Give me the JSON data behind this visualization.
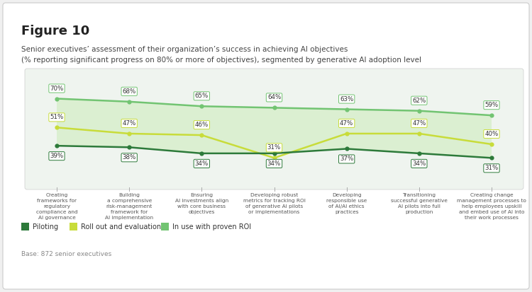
{
  "title": "Figure 10",
  "subtitle_line1": "Senior executives’ assessment of their organization’s success in achieving AI objectives",
  "subtitle_line2": "(% reporting significant progress on 80% or more of objectives), segmented by generative AI adoption level",
  "base_note": "Base: 872 senior executives",
  "categories": [
    "Creating\nframeworks for\nregulatory\ncompliance and\nAI governance",
    "Building\na comprehensive\nrisk-management\nframework for\nAI implementation",
    "Ensuring\nAI investments align\nwith core business\nobjectives",
    "Developing robust\nmetrics for tracking ROI\nof generative AI pilots\nor implementations",
    "Developing\nresponsible use\nof AI/AI ethics\npractices",
    "Transitioning\nsuccessful generative\nAI pilots into full\nproduction",
    "Creating change\nmanagement processes to\nhelp employees upskill\nand embed use of AI into\ntheir work processes"
  ],
  "series": {
    "piloting": {
      "label": "Piloting",
      "color": "#2d7a3a",
      "values": [
        39,
        38,
        34,
        34,
        37,
        34,
        31
      ]
    },
    "roll_out": {
      "label": "Roll out and evaluation",
      "color": "#c8dc3a",
      "values": [
        51,
        47,
        46,
        31,
        47,
        47,
        40
      ]
    },
    "in_use": {
      "label": "In use with proven ROI",
      "color": "#72c472",
      "values": [
        70,
        68,
        65,
        64,
        63,
        62,
        59
      ]
    }
  },
  "chart_bg_color": "#eff4ef",
  "outer_bg": "#f0f0f0"
}
